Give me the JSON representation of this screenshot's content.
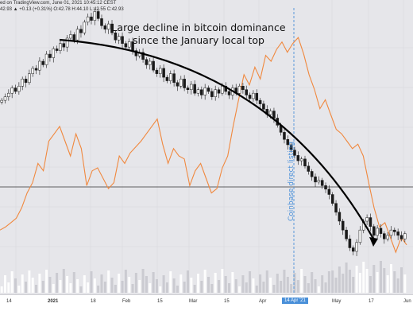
{
  "header": {
    "source_line": "ed on TradingView.com, June 01, 2021 10:45:12 CEST",
    "ohlc_line": "42.93 ▲ +0.13 (+0.31%) O:42.78 H:44.10 L:42.55 C:42.93"
  },
  "annotation": {
    "line1": "Large decline in bitcoin dominance",
    "line2": "since the January local top"
  },
  "event_label": "Coinbase direct listing",
  "date_marker": "14 Apr '21",
  "colors": {
    "background": "#e6e6ea",
    "candle_down": "#1a1a1a",
    "candle_up": "#ffffff",
    "orange_series": "#f0883e",
    "event_line": "#4a90d9",
    "arrow": "#000000"
  },
  "chart_data": {
    "type": "line",
    "xlabel": "",
    "ylabel": "",
    "x_tick_labels": [
      "14",
      "2021",
      "18",
      "Feb",
      "15",
      "Mar",
      "15",
      "Apr",
      "14 Apr '21",
      "May",
      "17",
      "Jun"
    ],
    "series": [
      {
        "kind": "candlestick",
        "values": [
          118,
          120,
          122,
          125,
          123,
          126,
          130,
          128,
          133,
          136,
          135,
          140,
          138,
          144,
          142,
          147,
          146,
          150,
          148,
          153,
          155,
          152,
          158,
          156,
          162,
          165,
          163,
          168,
          164,
          160,
          158,
          161,
          156,
          152,
          154,
          150,
          148,
          151,
          146,
          143,
          145,
          141,
          138,
          140,
          135,
          133,
          136,
          131,
          129,
          133,
          128,
          126,
          130,
          125,
          124,
          127,
          122,
          124,
          121,
          125,
          123,
          120,
          124,
          122,
          126,
          123,
          121,
          125,
          122,
          126,
          124,
          121,
          119,
          122,
          118,
          116,
          113,
          110,
          112,
          108,
          104,
          100,
          96,
          93,
          90,
          87,
          84,
          85,
          81,
          78,
          75,
          72,
          73,
          70,
          68,
          65,
          60,
          55,
          50,
          45,
          40,
          35,
          33,
          38,
          45,
          50,
          52,
          47,
          42,
          46,
          43,
          40,
          42,
          45,
          44,
          42,
          40,
          43
        ],
        "ylim": [
          20,
          170
        ]
      },
      {
        "kind": "line",
        "values": [
          30,
          32,
          35,
          38,
          45,
          55,
          62,
          75,
          70,
          90,
          95,
          100,
          90,
          80,
          95,
          85,
          60,
          70,
          72,
          65,
          58,
          62,
          80,
          75,
          82,
          86,
          90,
          95,
          100,
          105,
          88,
          75,
          85,
          80,
          78,
          60,
          70,
          75,
          65,
          55,
          58,
          72,
          80,
          100,
          118,
          135,
          128,
          140,
          132,
          148,
          144,
          152,
          157,
          150,
          156,
          160,
          149,
          135,
          125,
          112,
          118,
          108,
          98,
          95,
          90,
          85,
          88,
          80,
          62,
          45,
          32,
          35,
          25,
          15,
          25,
          20
        ],
        "ylim": [
          0,
          180
        ]
      }
    ],
    "horizontal_line": true
  }
}
